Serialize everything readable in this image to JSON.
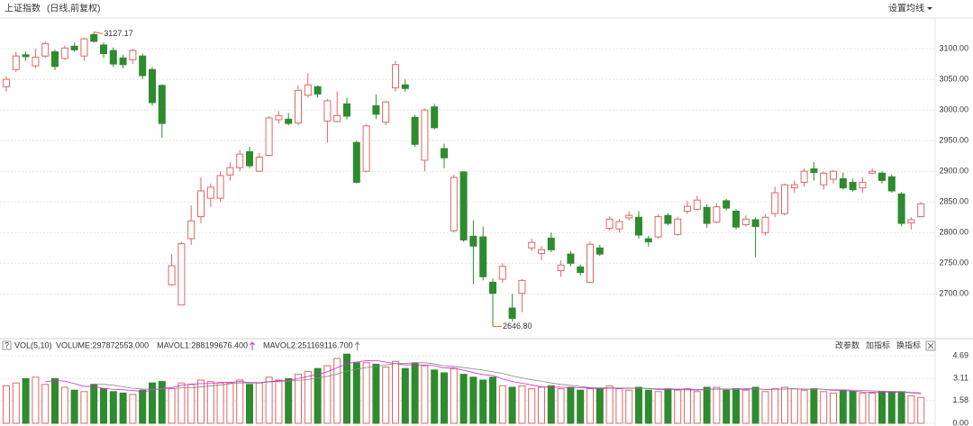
{
  "header": {
    "title": "上证指数",
    "subtitle": "(日线,前复权)",
    "button": "设置均线"
  },
  "toolbar": {
    "buttons": [
      "改参数",
      "加指标",
      "换指标"
    ]
  },
  "chart_data": [
    {
      "type": "candlestick",
      "up_color": "#e06666",
      "down_color": "#2e8b2e",
      "annotation_color": "#f07020",
      "grid": true,
      "ylim": [
        2630,
        3150
      ],
      "yticks": [
        {
          "value": 2700,
          "label": "2700.00"
        },
        {
          "value": 2750,
          "label": "2750.00"
        },
        {
          "value": 2800,
          "label": "2800.00"
        },
        {
          "value": 2850,
          "label": "2850.00"
        },
        {
          "value": 2900,
          "label": "2900.00"
        },
        {
          "value": 2950,
          "label": "2950.00"
        },
        {
          "value": 3000,
          "label": "3000.00"
        },
        {
          "value": 3050,
          "label": "3050.00"
        },
        {
          "value": 3100,
          "label": "3100.00"
        }
      ],
      "annotations": [
        {
          "value": 3127.17,
          "label": "3127.17"
        },
        {
          "value": 2646.8,
          "label": "2646.80"
        }
      ],
      "open": [
        3038,
        3066,
        3090,
        3072,
        3088,
        3095,
        3084,
        3104,
        3088,
        3123,
        3106,
        3097,
        3085,
        3082,
        3088,
        3066,
        3040,
        2715,
        2682,
        2790,
        2826,
        2856,
        2856,
        2894,
        2906,
        2932,
        2900,
        2926,
        2984,
        2985,
        2979,
        3024,
        3038,
        2982,
        2981,
        3010,
        2947,
        2900,
        3007,
        2980,
        3036,
        3041,
        2988,
        2918,
        3005,
        2937,
        2803,
        2899,
        2794,
        2793,
        2719,
        2724,
        2677,
        2701,
        2775,
        2766,
        2791,
        2738,
        2765,
        2744,
        2719,
        2775,
        2807,
        2806,
        2824,
        2825,
        2790,
        2793,
        2828,
        2797,
        2835,
        2838,
        2841,
        2817,
        2852,
        2835,
        2813,
        2821,
        2800,
        2831,
        2831,
        2873,
        2882,
        2904,
        2878,
        2887,
        2888,
        2882,
        2873,
        2897,
        2897,
        2891,
        2863,
        2816,
        2826
      ],
      "high": [
        3055,
        3095,
        3095,
        3100,
        3112,
        3098,
        3105,
        3110,
        3118,
        3127.17,
        3110,
        3102,
        3090,
        3100,
        3092,
        3070,
        3042,
        2765,
        2785,
        2844,
        2890,
        2880,
        2900,
        2915,
        2935,
        2940,
        2930,
        2990,
        2998,
        2995,
        3040,
        3060,
        3040,
        3018,
        3030,
        3020,
        2950,
        2977,
        3025,
        3015,
        3080,
        3050,
        2992,
        3002,
        3010,
        2945,
        2895,
        2900,
        2820,
        2810,
        2725,
        2750,
        2700,
        2724,
        2790,
        2778,
        2800,
        2755,
        2770,
        2748,
        2785,
        2780,
        2826,
        2822,
        2835,
        2835,
        2795,
        2830,
        2832,
        2826,
        2852,
        2860,
        2846,
        2848,
        2855,
        2838,
        2828,
        2825,
        2830,
        2875,
        2880,
        2885,
        2905,
        2915,
        2900,
        2902,
        2898,
        2888,
        2890,
        2905,
        2900,
        2895,
        2866,
        2825,
        2850
      ],
      "low": [
        3030,
        3062,
        3080,
        3068,
        3085,
        3065,
        3082,
        3095,
        3080,
        3110,
        3085,
        3070,
        3068,
        3075,
        3050,
        3007,
        2955,
        2713,
        2682,
        2780,
        2815,
        2842,
        2850,
        2885,
        2900,
        2905,
        2900,
        2925,
        2978,
        2975,
        2975,
        3020,
        3020,
        2947,
        2980,
        2985,
        2880,
        2898,
        2985,
        2975,
        3030,
        3030,
        2940,
        2900,
        2968,
        2905,
        2800,
        2785,
        2716,
        2722,
        2646.8,
        2718,
        2655,
        2670,
        2770,
        2755,
        2768,
        2728,
        2745,
        2730,
        2718,
        2762,
        2803,
        2800,
        2820,
        2790,
        2777,
        2790,
        2812,
        2795,
        2830,
        2836,
        2808,
        2815,
        2836,
        2805,
        2810,
        2760,
        2795,
        2825,
        2828,
        2865,
        2875,
        2885,
        2870,
        2880,
        2870,
        2867,
        2865,
        2895,
        2880,
        2865,
        2810,
        2805,
        2825
      ],
      "close": [
        3050,
        3088,
        3087,
        3086,
        3108,
        3071,
        3101,
        3098,
        3116,
        3112,
        3092,
        3075,
        3074,
        3097,
        3056,
        3012,
        2978,
        2746,
        2782,
        2819,
        2868,
        2874,
        2893,
        2906,
        2928,
        2909,
        2923,
        2987,
        2991,
        2978,
        3032,
        3041,
        3026,
        3015,
        2991,
        2990,
        2882,
        2974,
        2993,
        3013,
        3074,
        3035,
        2944,
        3000,
        2971,
        2922,
        2890,
        2788,
        2778,
        2728,
        2701,
        2745,
        2660,
        2722,
        2784,
        2772,
        2772,
        2747,
        2750,
        2735,
        2781,
        2765,
        2822,
        2818,
        2828,
        2796,
        2785,
        2826,
        2815,
        2822,
        2843,
        2853,
        2815,
        2842,
        2840,
        2809,
        2822,
        2810,
        2825,
        2865,
        2878,
        2878,
        2900,
        2898,
        2897,
        2900,
        2873,
        2870,
        2882,
        2900,
        2885,
        2868,
        2815,
        2821,
        2847
      ]
    },
    {
      "type": "volume",
      "title": "VOL(5,10)",
      "grid": true,
      "ylim": [
        0,
        5.5
      ],
      "yticks": [
        {
          "value": 0,
          "label": "0.00"
        },
        1.58,
        3.11,
        4.69
      ],
      "series": [
        {
          "name": "VOLUME:297872553.000",
          "color": "#000000",
          "values": [
            2.6,
            2.8,
            3.1,
            3.2,
            2.7,
            3.1,
            2.5,
            2.3,
            2.2,
            2.7,
            2.4,
            2.2,
            2.1,
            2.0,
            2.3,
            2.8,
            2.9,
            2.4,
            2.8,
            2.7,
            3.0,
            2.9,
            2.8,
            2.8,
            3.0,
            2.7,
            2.8,
            3.2,
            3.0,
            3.1,
            3.4,
            3.6,
            3.8,
            4.0,
            4.5,
            4.8,
            4.2,
            4.2,
            4.1,
            3.9,
            4.3,
            3.8,
            4.2,
            4.0,
            3.7,
            3.5,
            3.8,
            3.4,
            3.2,
            3.0,
            3.2,
            2.6,
            2.5,
            2.6,
            2.4,
            2.5,
            2.6,
            2.4,
            2.5,
            2.3,
            2.4,
            2.4,
            2.6,
            2.4,
            2.3,
            2.5,
            2.3,
            2.2,
            2.4,
            2.3,
            2.4,
            2.2,
            2.5,
            2.5,
            2.3,
            2.4,
            2.3,
            2.5,
            2.2,
            2.4,
            2.5,
            2.4,
            2.3,
            2.4,
            2.2,
            2.1,
            2.3,
            2.2,
            2.1,
            2.1,
            2.2,
            2.2,
            2.2,
            1.9,
            1.8
          ]
        },
        {
          "name": "MAVOL1:288199676.400",
          "color": "#e020e0",
          "values": [
            null,
            null,
            null,
            null,
            2.88,
            2.98,
            2.92,
            2.76,
            2.56,
            2.56,
            2.42,
            2.36,
            2.32,
            2.28,
            2.2,
            2.28,
            2.42,
            2.48,
            2.64,
            2.72,
            2.76,
            2.76,
            2.84,
            2.84,
            2.9,
            2.84,
            2.82,
            2.9,
            2.94,
            2.96,
            3.1,
            3.26,
            3.38,
            3.58,
            3.86,
            4.14,
            4.26,
            4.34,
            4.36,
            4.24,
            4.14,
            4.06,
            4.06,
            4.04,
            4.0,
            3.84,
            3.84,
            3.68,
            3.52,
            3.38,
            3.32,
            3.08,
            2.9,
            2.78,
            2.66,
            2.52,
            2.52,
            2.5,
            2.48,
            2.46,
            2.44,
            2.4,
            2.44,
            2.42,
            2.42,
            2.44,
            2.42,
            2.34,
            2.34,
            2.34,
            2.32,
            2.3,
            2.36,
            2.38,
            2.38,
            2.38,
            2.4,
            2.4,
            2.34,
            2.36,
            2.38,
            2.4,
            2.36,
            2.4,
            2.36,
            2.28,
            2.26,
            2.24,
            2.18,
            2.16,
            2.18,
            2.16,
            2.16,
            2.12,
            2.06
          ]
        },
        {
          "name": "MAVOL2:251169116.700",
          "color": "#888888",
          "values": [
            null,
            null,
            null,
            null,
            null,
            null,
            null,
            null,
            null,
            2.72,
            2.7,
            2.64,
            2.54,
            2.42,
            2.38,
            2.35,
            2.39,
            2.4,
            2.46,
            2.46,
            2.52,
            2.59,
            2.66,
            2.74,
            2.81,
            2.8,
            2.79,
            2.87,
            2.89,
            2.93,
            2.97,
            3.04,
            3.14,
            3.26,
            3.41,
            3.62,
            3.76,
            3.86,
            3.97,
            4.05,
            4.14,
            4.16,
            4.2,
            4.2,
            4.12,
            3.99,
            3.95,
            3.87,
            3.78,
            3.69,
            3.58,
            3.46,
            3.29,
            3.15,
            3.02,
            2.92,
            2.8,
            2.7,
            2.63,
            2.56,
            2.48,
            2.46,
            2.47,
            2.45,
            2.44,
            2.44,
            2.41,
            2.39,
            2.38,
            2.38,
            2.38,
            2.36,
            2.35,
            2.36,
            2.36,
            2.35,
            2.35,
            2.38,
            2.36,
            2.37,
            2.38,
            2.4,
            2.38,
            2.37,
            2.36,
            2.33,
            2.33,
            2.3,
            2.29,
            2.26,
            2.23,
            2.21,
            2.2,
            2.15,
            2.11
          ]
        }
      ]
    }
  ]
}
